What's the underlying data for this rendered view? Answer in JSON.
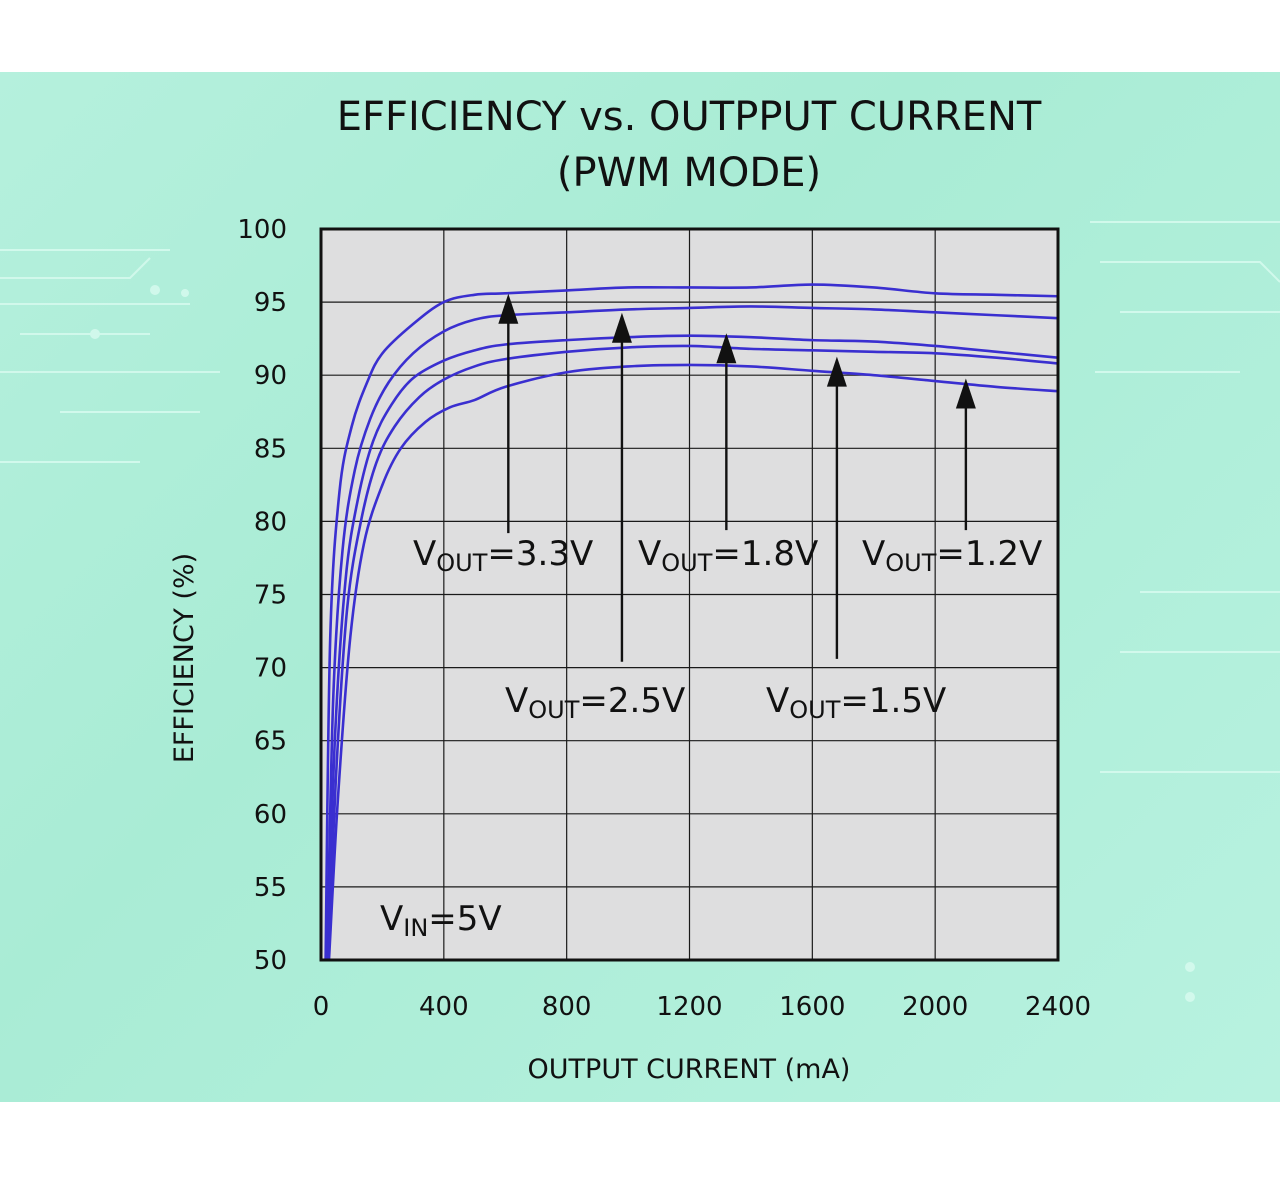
{
  "chart_data": {
    "type": "line",
    "title": "EFFICIENCY vs. OUTPPUT CURRENT",
    "subtitle": "(PWM MODE)",
    "xlabel": "OUTPUT CURRENT (mA)",
    "ylabel": "EFFICIENCY (%)",
    "xlim": [
      0,
      2400
    ],
    "ylim": [
      50,
      100
    ],
    "xticks": [
      "0",
      "400",
      "800",
      "1200",
      "1600",
      "2000",
      "2400"
    ],
    "yticks": [
      "100",
      "95",
      "90",
      "85",
      "80",
      "75",
      "70",
      "65",
      "60",
      "55",
      "50"
    ],
    "grid": true,
    "series": [
      {
        "x": [
          15,
          30,
          60,
          100,
          150,
          200,
          300,
          400,
          500,
          600,
          800,
          1000,
          1200,
          1400,
          1600,
          1800,
          2000,
          2200,
          2400
        ],
        "y": [
          50,
          72,
          82,
          86.5,
          89.5,
          91.5,
          93.5,
          95,
          95.5,
          95.6,
          95.8,
          96,
          96,
          96,
          96.2,
          96,
          95.6,
          95.5,
          95.4
        ]
      },
      {
        "x": [
          20,
          40,
          70,
          110,
          160,
          220,
          300,
          400,
          500,
          600,
          800,
          1000,
          1200,
          1400,
          1600,
          1800,
          2000,
          2200,
          2400
        ],
        "y": [
          50,
          68,
          78,
          83.5,
          87,
          89.5,
          91.5,
          93,
          93.8,
          94.1,
          94.3,
          94.5,
          94.6,
          94.7,
          94.6,
          94.5,
          94.3,
          94.1,
          93.9
        ]
      },
      {
        "x": [
          22,
          45,
          80,
          120,
          170,
          230,
          300,
          400,
          500,
          600,
          800,
          1000,
          1200,
          1400,
          1600,
          1800,
          2000,
          2200,
          2400
        ],
        "y": [
          50,
          65,
          76,
          81.5,
          85.5,
          88,
          89.8,
          91,
          91.7,
          92.1,
          92.4,
          92.6,
          92.7,
          92.6,
          92.4,
          92.3,
          92,
          91.6,
          91.2
        ]
      },
      {
        "x": [
          24,
          50,
          85,
          130,
          180,
          240,
          320,
          400,
          500,
          600,
          800,
          1000,
          1200,
          1400,
          1600,
          1800,
          2000,
          2200,
          2400
        ],
        "y": [
          50,
          63,
          74,
          80,
          84,
          86.5,
          88.5,
          89.7,
          90.6,
          91.1,
          91.6,
          91.9,
          92,
          91.8,
          91.7,
          91.6,
          91.5,
          91.2,
          90.8
        ]
      },
      {
        "x": [
          26,
          55,
          95,
          140,
          200,
          260,
          340,
          420,
          500,
          600,
          800,
          1000,
          1200,
          1400,
          1600,
          1800,
          2000,
          2200,
          2400
        ],
        "y": [
          50,
          61,
          72,
          78.5,
          82.5,
          85,
          86.8,
          87.8,
          88.3,
          89.2,
          90.2,
          90.6,
          90.7,
          90.6,
          90.3,
          90,
          89.6,
          89.2,
          88.9
        ]
      }
    ],
    "annotations": [
      {
        "main": "V",
        "sub": "OUT",
        "rest": "=3.3V",
        "arrow_x": 610,
        "arrow_y_top": 95.3,
        "arrow_y_bottom": 79.2
      },
      {
        "main": "V",
        "sub": "OUT",
        "rest": "=2.5V",
        "arrow_x": 980,
        "arrow_y_top": 94.0,
        "arrow_y_bottom": 70.4
      },
      {
        "main": "V",
        "sub": "OUT",
        "rest": "=1.8V",
        "arrow_x": 1320,
        "arrow_y_top": 92.6,
        "arrow_y_bottom": 79.4
      },
      {
        "main": "V",
        "sub": "OUT",
        "rest": "=1.5V",
        "arrow_x": 1680,
        "arrow_y_top": 91.0,
        "arrow_y_bottom": 70.6
      },
      {
        "main": "V",
        "sub": "OUT",
        "rest": "=1.2V",
        "arrow_x": 2100,
        "arrow_y_top": 89.5,
        "arrow_y_bottom": 79.4
      }
    ],
    "note": {
      "main": "V",
      "sub": "IN",
      "rest": "=5V"
    },
    "colors": {
      "series": "#3a2fd0",
      "grid": "#1a1a1a",
      "plot_bg": "#dededf",
      "background": "#b3efdc"
    }
  }
}
